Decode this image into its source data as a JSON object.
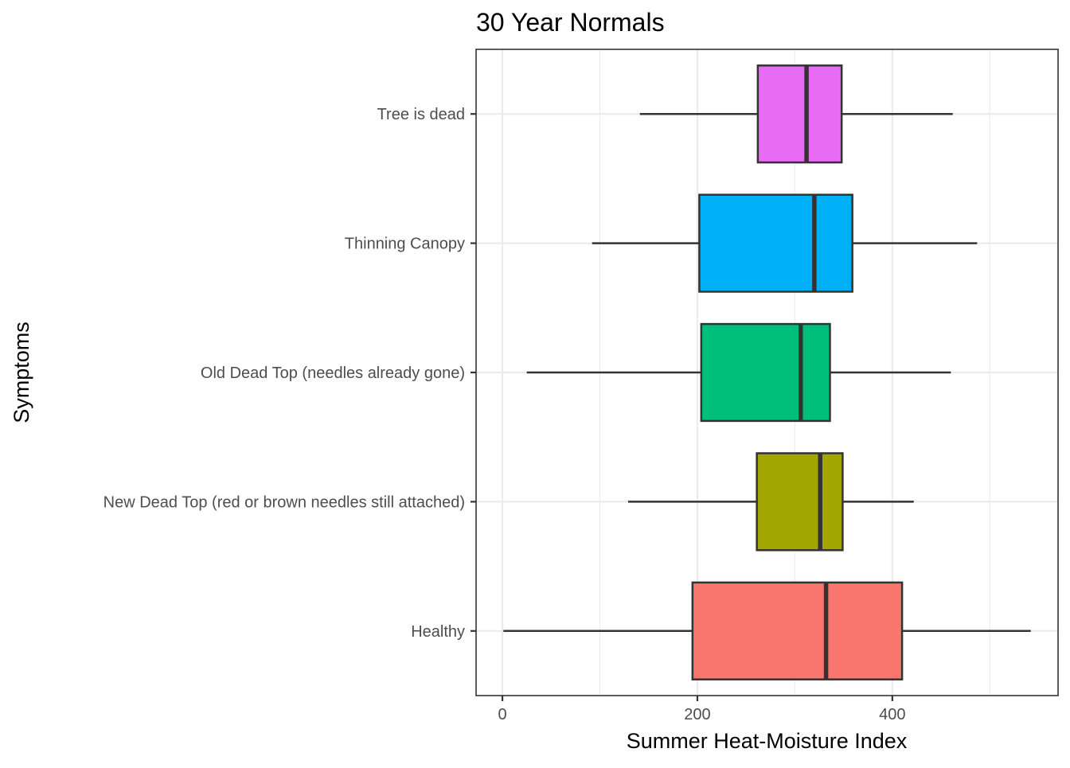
{
  "chart_data": {
    "type": "boxplot",
    "orientation": "horizontal",
    "title": "30 Year Normals",
    "xlabel": "Summer Heat-Moisture Index",
    "ylabel": "Symptoms",
    "xlim": [
      -27,
      570
    ],
    "x_ticks": [
      0,
      200,
      400
    ],
    "x_tick_labels": [
      "0",
      "200",
      "400"
    ],
    "x_minor_gridlines": [
      100,
      300,
      500
    ],
    "grid": true,
    "legend": "none",
    "categories": [
      "Healthy",
      "New Dead Top (red or brown needles still attached)",
      "Old Dead Top (needles already gone)",
      "Thinning Canopy",
      "Tree is dead"
    ],
    "boxes": [
      {
        "category": "Healthy",
        "whisker_low": 1,
        "q1": 195,
        "median": 332,
        "q3": 410,
        "whisker_high": 542,
        "color": "#F8766D"
      },
      {
        "category": "New Dead Top (red or brown needles still attached)",
        "whisker_low": 129,
        "q1": 261,
        "median": 326,
        "q3": 349,
        "whisker_high": 422,
        "color": "#A3A500"
      },
      {
        "category": "Old Dead Top (needles already gone)",
        "whisker_low": 25,
        "q1": 204,
        "median": 306,
        "q3": 336,
        "whisker_high": 460,
        "color": "#00BF7D"
      },
      {
        "category": "Thinning Canopy",
        "whisker_low": 92,
        "q1": 202,
        "median": 320,
        "q3": 359,
        "whisker_high": 487,
        "color": "#00B0F6"
      },
      {
        "category": "Tree is dead",
        "whisker_low": 141,
        "q1": 262,
        "median": 312,
        "q3": 348,
        "whisker_high": 462,
        "color": "#E76BF3"
      }
    ]
  }
}
